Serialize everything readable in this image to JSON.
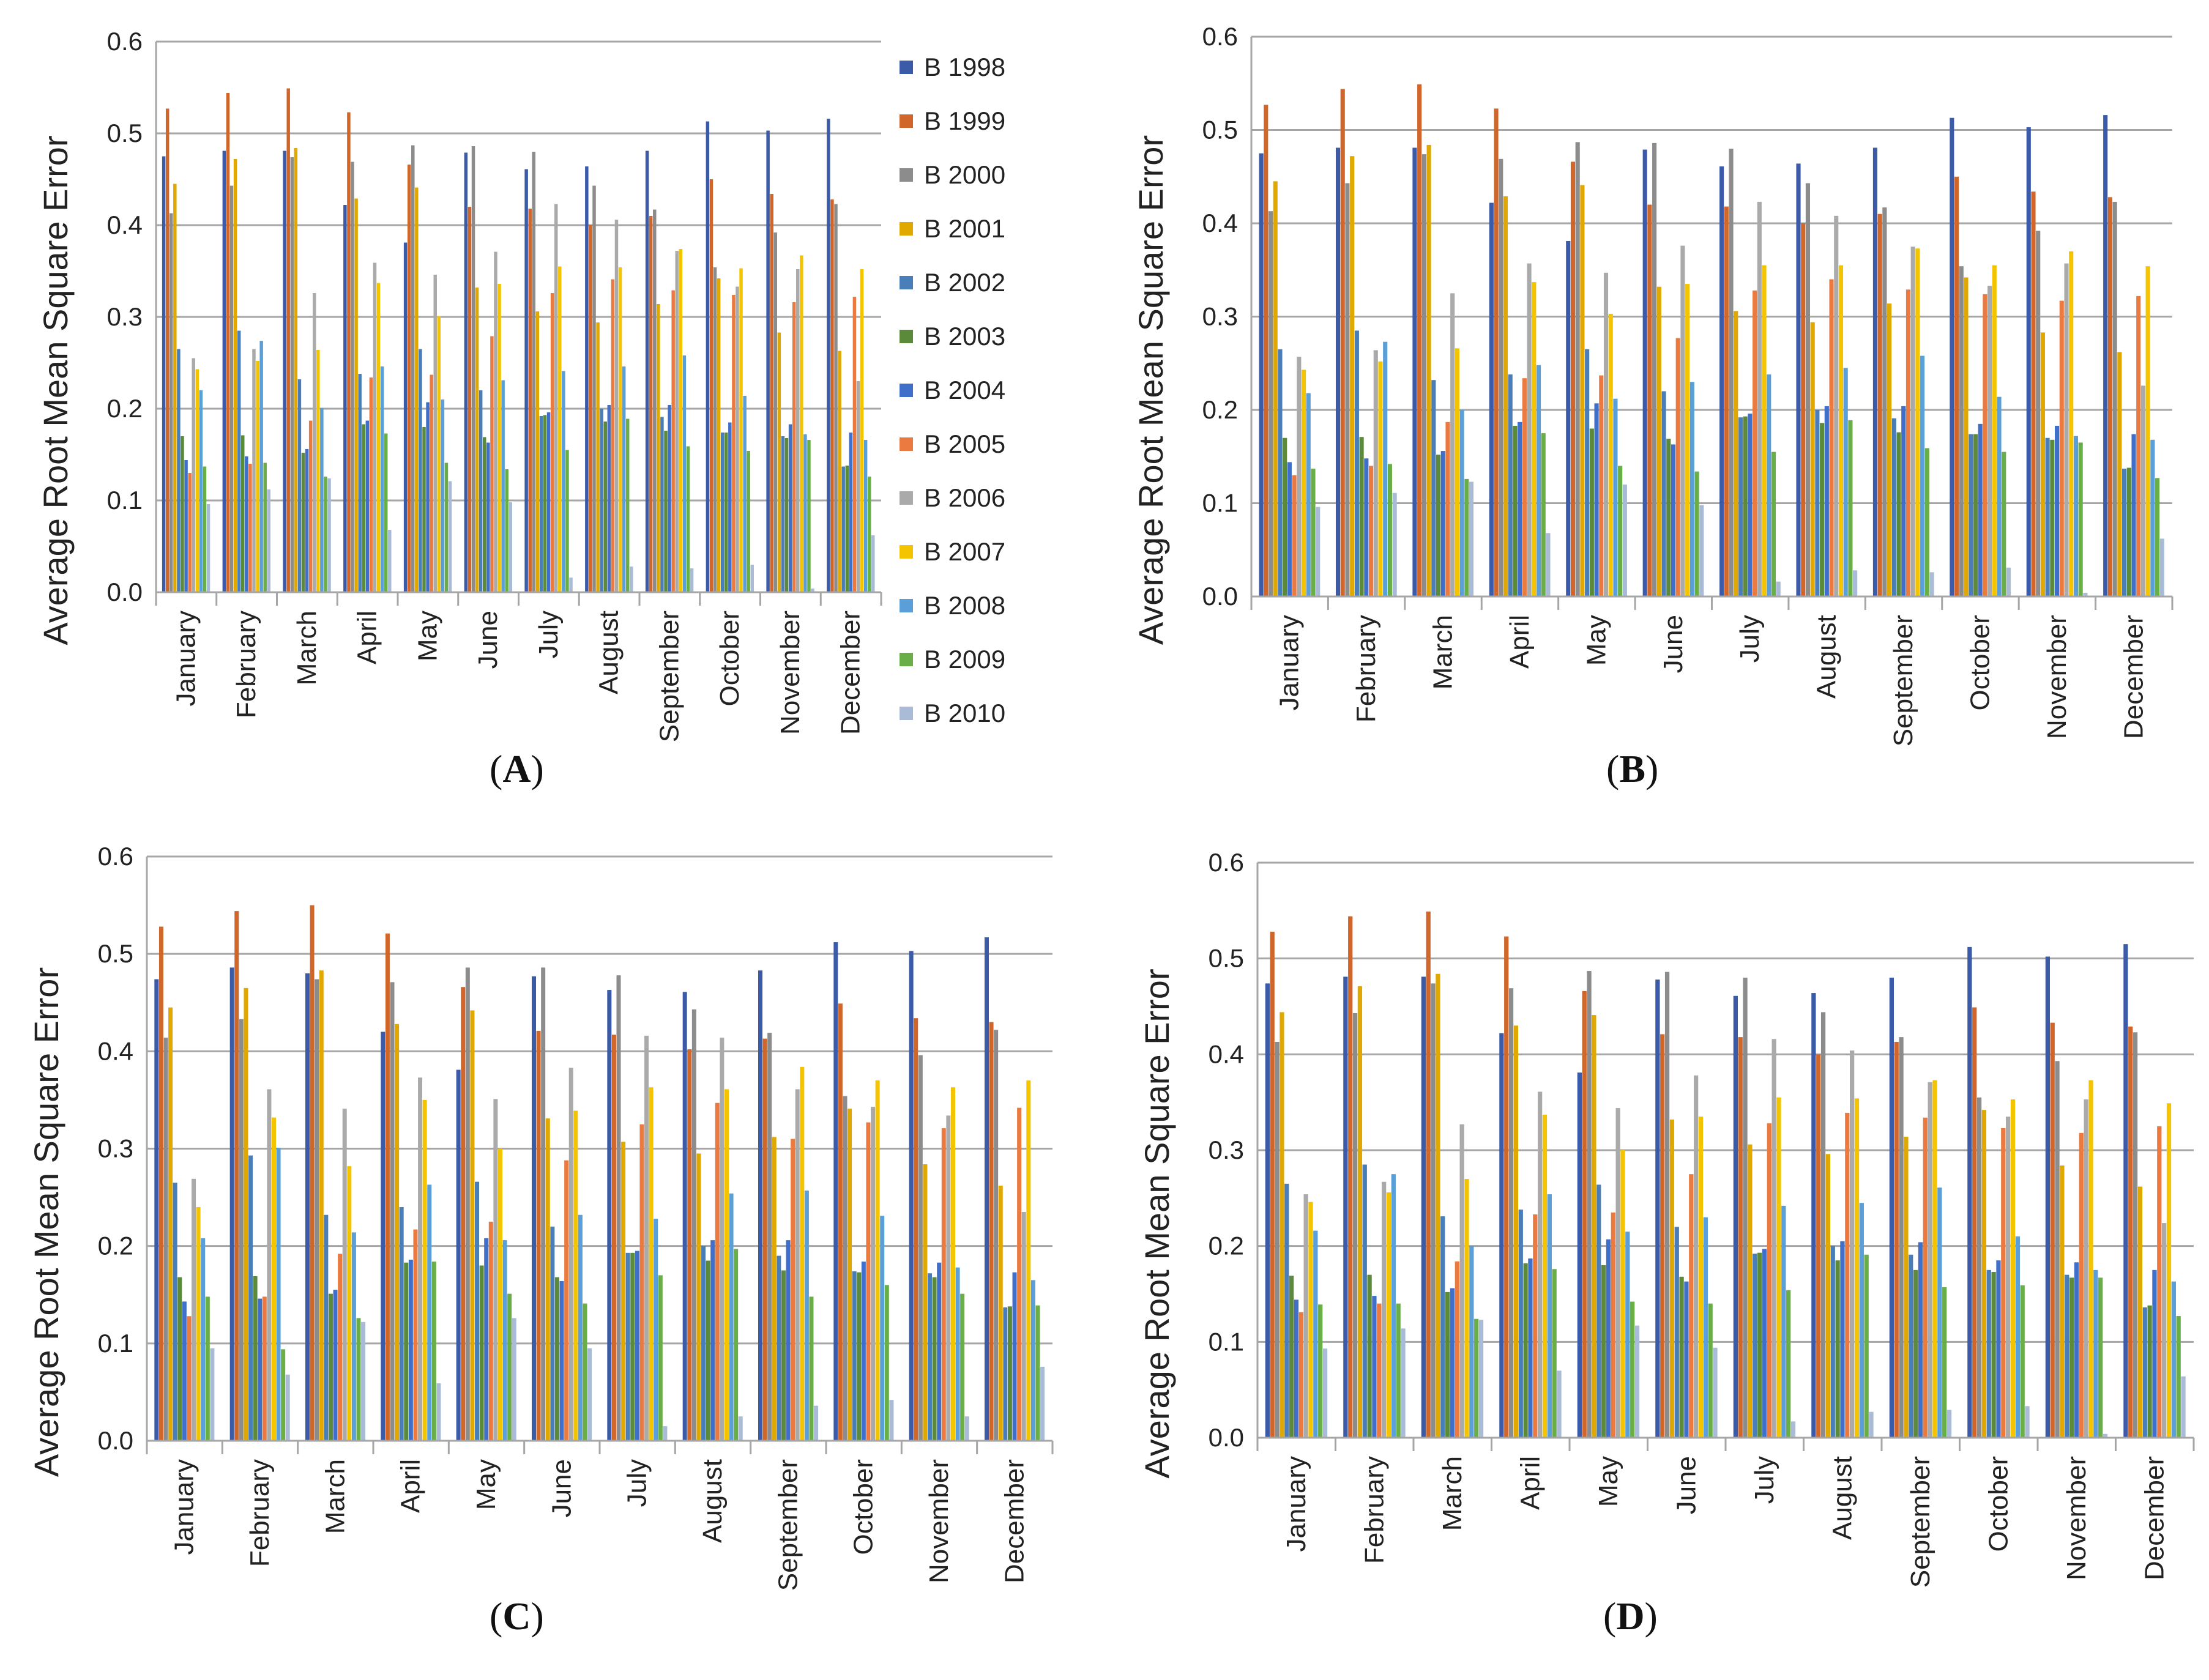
{
  "legend": [
    "B 1998",
    "B 1999",
    "B 2000",
    "B 2001",
    "B 2002",
    "B 2003",
    "B 2004",
    "B 2005",
    "B 2006",
    "B 2007",
    "B 2008",
    "B 2009",
    "B 2010"
  ],
  "colors": [
    "#3b5ba8",
    "#d0662a",
    "#8c8c8c",
    "#e0a800",
    "#4a7eb8",
    "#5a8a3a",
    "#3f6fc8",
    "#ea7a40",
    "#aaaaaa",
    "#f4c400",
    "#5b9fd8",
    "#6aae48",
    "#a9bbd6"
  ],
  "chart_data": [
    {
      "panel": "A",
      "caption": "(A)",
      "type": "bar",
      "ylabel": "Average Root Mean Square Error",
      "ylim": [
        0,
        0.6
      ],
      "yticks": [
        "0.0",
        "0.1",
        "0.2",
        "0.3",
        "0.4",
        "0.5",
        "0.6"
      ],
      "grid": true,
      "legend_position": "right",
      "categories": [
        "January",
        "February",
        "March",
        "April",
        "May",
        "June",
        "July",
        "August",
        "September",
        "October",
        "November",
        "December"
      ],
      "series": [
        {
          "name": "B 1998",
          "values": [
            0.475,
            0.481,
            0.481,
            0.422,
            0.381,
            0.479,
            0.461,
            0.464,
            0.481,
            0.513,
            0.503,
            0.516
          ]
        },
        {
          "name": "B 1999",
          "values": [
            0.527,
            0.544,
            0.549,
            0.523,
            0.466,
            0.42,
            0.418,
            0.4,
            0.41,
            0.45,
            0.434,
            0.428
          ]
        },
        {
          "name": "B 2000",
          "values": [
            0.413,
            0.443,
            0.474,
            0.469,
            0.487,
            0.486,
            0.48,
            0.443,
            0.417,
            0.354,
            0.392,
            0.423
          ]
        },
        {
          "name": "B 2001",
          "values": [
            0.445,
            0.472,
            0.484,
            0.429,
            0.441,
            0.332,
            0.306,
            0.294,
            0.314,
            0.342,
            0.283,
            0.263
          ]
        },
        {
          "name": "B 2002",
          "values": [
            0.265,
            0.285,
            0.232,
            0.238,
            0.265,
            0.22,
            0.192,
            0.2,
            0.191,
            0.174,
            0.17,
            0.137
          ]
        },
        {
          "name": "B 2003",
          "values": [
            0.17,
            0.171,
            0.152,
            0.183,
            0.18,
            0.169,
            0.193,
            0.186,
            0.176,
            0.174,
            0.168,
            0.138
          ]
        },
        {
          "name": "B 2004",
          "values": [
            0.144,
            0.148,
            0.156,
            0.187,
            0.207,
            0.163,
            0.196,
            0.204,
            0.204,
            0.185,
            0.183,
            0.174
          ]
        },
        {
          "name": "B 2005",
          "values": [
            0.13,
            0.14,
            0.187,
            0.234,
            0.237,
            0.279,
            0.326,
            0.341,
            0.329,
            0.324,
            0.316,
            0.322
          ]
        },
        {
          "name": "B 2006",
          "values": [
            0.255,
            0.265,
            0.326,
            0.359,
            0.346,
            0.371,
            0.423,
            0.406,
            0.372,
            0.333,
            0.352,
            0.23
          ]
        },
        {
          "name": "B 2007",
          "values": [
            0.243,
            0.252,
            0.264,
            0.337,
            0.301,
            0.336,
            0.355,
            0.354,
            0.374,
            0.353,
            0.367,
            0.352
          ]
        },
        {
          "name": "B 2008",
          "values": [
            0.22,
            0.274,
            0.201,
            0.246,
            0.21,
            0.231,
            0.241,
            0.246,
            0.258,
            0.214,
            0.172,
            0.166
          ]
        },
        {
          "name": "B 2009",
          "values": [
            0.137,
            0.141,
            0.126,
            0.173,
            0.141,
            0.134,
            0.155,
            0.189,
            0.159,
            0.154,
            0.166,
            0.126
          ]
        },
        {
          "name": "B 2010",
          "values": [
            0.096,
            0.112,
            0.124,
            0.068,
            0.121,
            0.098,
            0.016,
            0.028,
            0.026,
            0.03,
            0.004,
            0.062
          ]
        }
      ]
    },
    {
      "panel": "B",
      "caption": "(B)",
      "type": "bar",
      "ylabel": "Average Root Mean Square Error",
      "ylim": [
        0,
        0.6
      ],
      "yticks": [
        "0.0",
        "0.1",
        "0.2",
        "0.3",
        "0.4",
        "0.5",
        "0.6"
      ],
      "grid": true,
      "categories": [
        "January",
        "February",
        "March",
        "April",
        "May",
        "June",
        "July",
        "August",
        "September",
        "October",
        "November",
        "December"
      ],
      "series": [
        {
          "name": "B 1998",
          "values": [
            0.475,
            0.481,
            0.481,
            0.422,
            0.381,
            0.479,
            0.461,
            0.464,
            0.481,
            0.513,
            0.503,
            0.516
          ]
        },
        {
          "name": "B 1999",
          "values": [
            0.527,
            0.544,
            0.549,
            0.523,
            0.466,
            0.42,
            0.418,
            0.4,
            0.41,
            0.45,
            0.434,
            0.428
          ]
        },
        {
          "name": "B 2000",
          "values": [
            0.413,
            0.443,
            0.474,
            0.469,
            0.487,
            0.486,
            0.48,
            0.443,
            0.417,
            0.354,
            0.392,
            0.423
          ]
        },
        {
          "name": "B 2001",
          "values": [
            0.445,
            0.472,
            0.484,
            0.429,
            0.441,
            0.332,
            0.306,
            0.294,
            0.314,
            0.342,
            0.283,
            0.262
          ]
        },
        {
          "name": "B 2002",
          "values": [
            0.265,
            0.285,
            0.232,
            0.238,
            0.265,
            0.22,
            0.192,
            0.2,
            0.191,
            0.174,
            0.17,
            0.137
          ]
        },
        {
          "name": "B 2003",
          "values": [
            0.17,
            0.171,
            0.152,
            0.183,
            0.18,
            0.169,
            0.193,
            0.186,
            0.176,
            0.174,
            0.168,
            0.138
          ]
        },
        {
          "name": "B 2004",
          "values": [
            0.144,
            0.148,
            0.156,
            0.187,
            0.207,
            0.163,
            0.196,
            0.204,
            0.204,
            0.185,
            0.183,
            0.174
          ]
        },
        {
          "name": "B 2005",
          "values": [
            0.13,
            0.14,
            0.187,
            0.234,
            0.237,
            0.277,
            0.328,
            0.34,
            0.329,
            0.324,
            0.317,
            0.322
          ]
        },
        {
          "name": "B 2006",
          "values": [
            0.257,
            0.264,
            0.325,
            0.357,
            0.347,
            0.376,
            0.423,
            0.408,
            0.375,
            0.333,
            0.357,
            0.226
          ]
        },
        {
          "name": "B 2007",
          "values": [
            0.243,
            0.252,
            0.266,
            0.337,
            0.303,
            0.335,
            0.355,
            0.355,
            0.373,
            0.355,
            0.37,
            0.354
          ]
        },
        {
          "name": "B 2008",
          "values": [
            0.218,
            0.273,
            0.2,
            0.248,
            0.212,
            0.23,
            0.238,
            0.245,
            0.258,
            0.214,
            0.172,
            0.168
          ]
        },
        {
          "name": "B 2009",
          "values": [
            0.137,
            0.142,
            0.126,
            0.175,
            0.14,
            0.134,
            0.155,
            0.189,
            0.159,
            0.155,
            0.165,
            0.127
          ]
        },
        {
          "name": "B 2010",
          "values": [
            0.096,
            0.111,
            0.123,
            0.068,
            0.12,
            0.098,
            0.016,
            0.028,
            0.026,
            0.031,
            0.004,
            0.062
          ]
        }
      ]
    },
    {
      "panel": "C",
      "caption": "(C)",
      "type": "bar",
      "ylabel": "Average Root Mean Square Error",
      "ylim": [
        0,
        0.6
      ],
      "yticks": [
        "0.0",
        "0.1",
        "0.2",
        "0.3",
        "0.4",
        "0.5",
        "0.6"
      ],
      "grid": true,
      "categories": [
        "January",
        "February",
        "March",
        "April",
        "May",
        "June",
        "July",
        "August",
        "September",
        "October",
        "November",
        "December"
      ],
      "series": [
        {
          "name": "B 1998",
          "values": [
            0.474,
            0.486,
            0.48,
            0.42,
            0.381,
            0.477,
            0.463,
            0.461,
            0.483,
            0.512,
            0.503,
            0.517
          ]
        },
        {
          "name": "B 1999",
          "values": [
            0.528,
            0.544,
            0.55,
            0.521,
            0.466,
            0.421,
            0.417,
            0.402,
            0.413,
            0.449,
            0.434,
            0.43
          ]
        },
        {
          "name": "B 2000",
          "values": [
            0.414,
            0.433,
            0.474,
            0.471,
            0.486,
            0.486,
            0.478,
            0.443,
            0.419,
            0.354,
            0.396,
            0.422
          ]
        },
        {
          "name": "B 2001",
          "values": [
            0.445,
            0.465,
            0.483,
            0.428,
            0.442,
            0.331,
            0.307,
            0.295,
            0.312,
            0.341,
            0.284,
            0.262
          ]
        },
        {
          "name": "B 2002",
          "values": [
            0.265,
            0.293,
            0.232,
            0.24,
            0.266,
            0.22,
            0.193,
            0.2,
            0.19,
            0.174,
            0.172,
            0.137
          ]
        },
        {
          "name": "B 2003",
          "values": [
            0.168,
            0.169,
            0.151,
            0.183,
            0.18,
            0.168,
            0.193,
            0.185,
            0.175,
            0.173,
            0.168,
            0.138
          ]
        },
        {
          "name": "B 2004",
          "values": [
            0.143,
            0.146,
            0.155,
            0.186,
            0.208,
            0.164,
            0.195,
            0.206,
            0.206,
            0.184,
            0.183,
            0.173
          ]
        },
        {
          "name": "B 2005",
          "values": [
            0.128,
            0.148,
            0.192,
            0.217,
            0.225,
            0.288,
            0.325,
            0.347,
            0.31,
            0.327,
            0.321,
            0.342
          ]
        },
        {
          "name": "B 2006",
          "values": [
            0.269,
            0.361,
            0.341,
            0.373,
            0.351,
            0.383,
            0.416,
            0.414,
            0.361,
            0.343,
            0.334,
            0.235
          ]
        },
        {
          "name": "B 2007",
          "values": [
            0.24,
            0.332,
            0.282,
            0.35,
            0.3,
            0.339,
            0.363,
            0.361,
            0.384,
            0.37,
            0.363,
            0.37
          ]
        },
        {
          "name": "B 2008",
          "values": [
            0.208,
            0.301,
            0.214,
            0.263,
            0.206,
            0.232,
            0.228,
            0.254,
            0.257,
            0.231,
            0.178,
            0.165
          ]
        },
        {
          "name": "B 2009",
          "values": [
            0.148,
            0.094,
            0.126,
            0.184,
            0.151,
            0.141,
            0.17,
            0.197,
            0.148,
            0.16,
            0.151,
            0.139
          ]
        },
        {
          "name": "B 2010",
          "values": [
            0.095,
            0.068,
            0.122,
            0.059,
            0.126,
            0.095,
            0.015,
            0.025,
            0.036,
            0.042,
            0.025,
            0.076
          ]
        }
      ]
    },
    {
      "panel": "D",
      "caption": "(D)",
      "type": "bar",
      "ylabel": "Average Root Mean Square Error",
      "ylim": [
        0,
        0.6
      ],
      "yticks": [
        "0.0",
        "0.1",
        "0.2",
        "0.3",
        "0.4",
        "0.5",
        "0.6"
      ],
      "grid": true,
      "categories": [
        "January",
        "February",
        "March",
        "April",
        "May",
        "June",
        "July",
        "August",
        "September",
        "October",
        "November",
        "December"
      ],
      "series": [
        {
          "name": "B 1998",
          "values": [
            0.474,
            0.481,
            0.481,
            0.422,
            0.381,
            0.478,
            0.461,
            0.464,
            0.48,
            0.512,
            0.502,
            0.515
          ]
        },
        {
          "name": "B 1999",
          "values": [
            0.528,
            0.544,
            0.549,
            0.523,
            0.466,
            0.421,
            0.418,
            0.4,
            0.413,
            0.449,
            0.433,
            0.429
          ]
        },
        {
          "name": "B 2000",
          "values": [
            0.413,
            0.443,
            0.474,
            0.469,
            0.487,
            0.486,
            0.48,
            0.444,
            0.418,
            0.355,
            0.393,
            0.423
          ]
        },
        {
          "name": "B 2001",
          "values": [
            0.444,
            0.471,
            0.484,
            0.43,
            0.441,
            0.332,
            0.306,
            0.296,
            0.314,
            0.342,
            0.284,
            0.262
          ]
        },
        {
          "name": "B 2002",
          "values": [
            0.265,
            0.285,
            0.231,
            0.238,
            0.264,
            0.22,
            0.192,
            0.2,
            0.191,
            0.175,
            0.17,
            0.136
          ]
        },
        {
          "name": "B 2003",
          "values": [
            0.169,
            0.17,
            0.152,
            0.182,
            0.18,
            0.168,
            0.193,
            0.185,
            0.175,
            0.173,
            0.167,
            0.138
          ]
        },
        {
          "name": "B 2004",
          "values": [
            0.144,
            0.148,
            0.156,
            0.187,
            0.207,
            0.163,
            0.197,
            0.205,
            0.204,
            0.185,
            0.183,
            0.175
          ]
        },
        {
          "name": "B 2005",
          "values": [
            0.131,
            0.14,
            0.184,
            0.233,
            0.235,
            0.275,
            0.328,
            0.339,
            0.334,
            0.323,
            0.318,
            0.325
          ]
        },
        {
          "name": "B 2006",
          "values": [
            0.254,
            0.267,
            0.327,
            0.361,
            0.344,
            0.378,
            0.416,
            0.404,
            0.371,
            0.335,
            0.353,
            0.224
          ]
        },
        {
          "name": "B 2007",
          "values": [
            0.246,
            0.256,
            0.27,
            0.337,
            0.3,
            0.335,
            0.355,
            0.354,
            0.373,
            0.353,
            0.373,
            0.349
          ]
        },
        {
          "name": "B 2008",
          "values": [
            0.216,
            0.275,
            0.2,
            0.254,
            0.215,
            0.23,
            0.242,
            0.245,
            0.261,
            0.21,
            0.175,
            0.163
          ]
        },
        {
          "name": "B 2009",
          "values": [
            0.139,
            0.14,
            0.124,
            0.176,
            0.142,
            0.14,
            0.154,
            0.191,
            0.157,
            0.159,
            0.167,
            0.127
          ]
        },
        {
          "name": "B 2010",
          "values": [
            0.093,
            0.114,
            0.123,
            0.07,
            0.117,
            0.094,
            0.017,
            0.027,
            0.029,
            0.033,
            0.004,
            0.064
          ]
        }
      ]
    }
  ]
}
